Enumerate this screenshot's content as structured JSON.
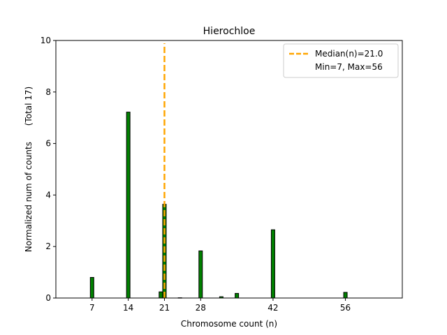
{
  "chart_data": {
    "type": "bar",
    "title": "Hierochloe",
    "xlabel": "Chromosome count (n)",
    "ylabel": "Normalized num of counts      (Total 17)",
    "xlim": [
      0,
      67
    ],
    "ylim": [
      0,
      10
    ],
    "xticks": [
      7,
      14,
      21,
      28,
      42,
      56
    ],
    "yticks": [
      0,
      2,
      4,
      6,
      8,
      10
    ],
    "bar_color": "#008000",
    "bar_edge_color": "#000000",
    "bars": [
      {
        "x": 7,
        "value": 0.8
      },
      {
        "x": 14,
        "value": 7.22
      },
      {
        "x": 20.3,
        "value": 0.24
      },
      {
        "x": 21,
        "value": 3.64
      },
      {
        "x": 24,
        "value": 0.01
      },
      {
        "x": 32,
        "value": 0.05
      },
      {
        "x": 35,
        "value": 0.18
      },
      {
        "x": 28,
        "value": 1.83
      },
      {
        "x": 42,
        "value": 2.65
      },
      {
        "x": 56,
        "value": 0.22
      }
    ],
    "median_line": {
      "x": 21.0,
      "color": "#ffa500",
      "label": "Median(n)=21.0"
    },
    "legend": {
      "position": "top-right",
      "entries": [
        "Median(n)=21.0",
        "Min=7, Max=56"
      ]
    }
  }
}
